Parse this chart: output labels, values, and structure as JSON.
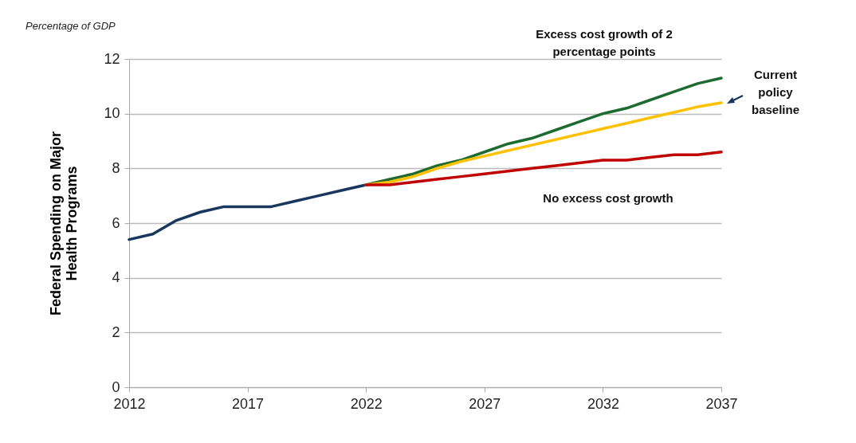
{
  "chart_data": {
    "type": "line",
    "ylabel": "Federal Spending on Major Health Programs",
    "annotations": [
      "Percentage of GDP"
    ],
    "xlim": [
      2012,
      2037
    ],
    "xticks": [
      2012,
      2017,
      2022,
      2027,
      2032,
      2037
    ],
    "ylim": [
      0,
      12
    ],
    "yticks": [
      0,
      2,
      4,
      6,
      8,
      10,
      12
    ],
    "grid": "y",
    "legend": false,
    "marker": "none",
    "line_style": "solid",
    "series": [
      {
        "color": "#17375e",
        "x": [
          2012,
          2013,
          2014,
          2015,
          2016,
          2017,
          2018,
          2019,
          2020,
          2021,
          2022
        ],
        "values": [
          5.4,
          5.6,
          6.1,
          6.4,
          6.6,
          6.6,
          6.6,
          6.8,
          7.0,
          7.2,
          7.4
        ]
      },
      {
        "name": "Excess cost growth of 2 percentage points",
        "color": "#1e6b30",
        "x": [
          2022,
          2023,
          2024,
          2025,
          2026,
          2027,
          2028,
          2029,
          2030,
          2031,
          2032,
          2033,
          2034,
          2035,
          2036,
          2037
        ],
        "values": [
          7.4,
          7.6,
          7.8,
          8.1,
          8.3,
          8.6,
          8.9,
          9.1,
          9.4,
          9.7,
          10.0,
          10.2,
          10.5,
          10.8,
          11.1,
          11.3
        ]
      },
      {
        "name": "Current policy baseline",
        "color": "#ffc000",
        "x": [
          2022,
          2023,
          2024,
          2025,
          2026,
          2027,
          2028,
          2029,
          2030,
          2031,
          2032,
          2033,
          2034,
          2035,
          2036,
          2037
        ],
        "values": [
          7.4,
          7.5,
          7.7,
          8.0,
          8.25,
          8.45,
          8.65,
          8.85,
          9.05,
          9.25,
          9.45,
          9.65,
          9.85,
          10.05,
          10.25,
          10.4
        ]
      },
      {
        "name": "No excess cost growth",
        "color": "#c00000",
        "x": [
          2022,
          2023,
          2024,
          2025,
          2026,
          2027,
          2028,
          2029,
          2030,
          2031,
          2032,
          2033,
          2034,
          2035,
          2036,
          2037
        ],
        "values": [
          7.4,
          7.4,
          7.5,
          7.6,
          7.7,
          7.8,
          7.9,
          8.0,
          8.1,
          8.2,
          8.3,
          8.3,
          8.4,
          8.5,
          8.5,
          8.6
        ]
      }
    ]
  }
}
